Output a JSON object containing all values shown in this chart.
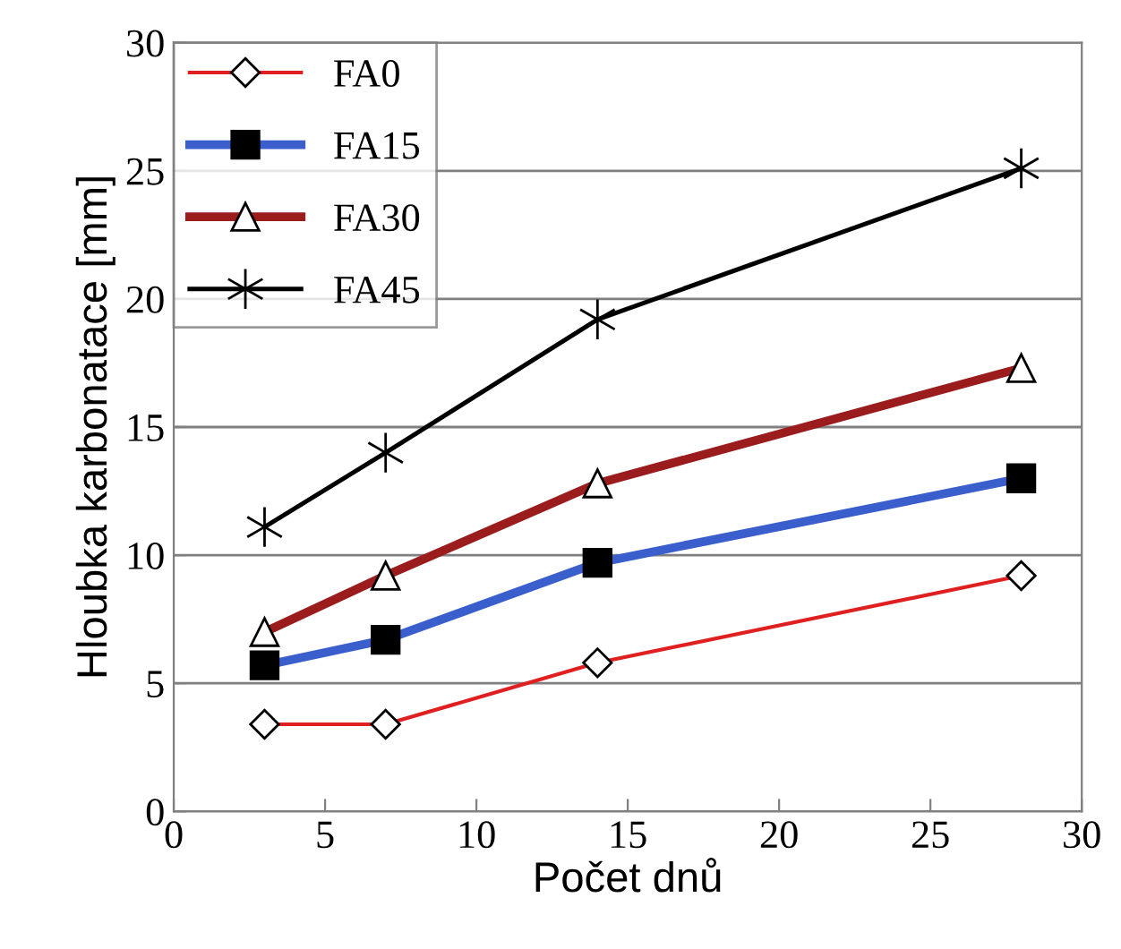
{
  "chart_data": {
    "type": "line",
    "xlabel": "Počet dnů",
    "ylabel": "Hloubka karbonatace [mm]",
    "x": [
      3,
      7,
      14,
      28
    ],
    "series": [
      {
        "name": "FA0",
        "color": "#e02020",
        "marker": "diamond",
        "values": [
          3.4,
          3.4,
          5.8,
          9.2
        ]
      },
      {
        "name": "FA15",
        "color": "#3a5fcd",
        "marker": "square",
        "values": [
          5.7,
          6.7,
          9.7,
          13.0
        ]
      },
      {
        "name": "FA30",
        "color": "#9b1c1c",
        "marker": "triangle",
        "values": [
          7.0,
          9.2,
          12.8,
          17.3
        ]
      },
      {
        "name": "FA45",
        "color": "#000000",
        "marker": "cross",
        "values": [
          11.1,
          14.0,
          19.2,
          25.1
        ]
      }
    ],
    "xlim": [
      0,
      30
    ],
    "xticks": [
      0,
      5,
      10,
      15,
      20,
      25,
      30
    ],
    "ylim": [
      0,
      30
    ],
    "yticks": [
      0,
      5,
      10,
      15,
      20,
      25,
      30
    ],
    "grid": "y",
    "legend": "top left"
  }
}
